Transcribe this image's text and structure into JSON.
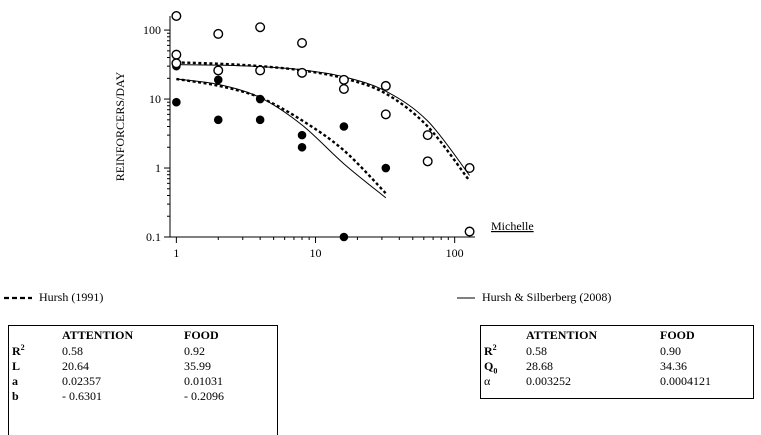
{
  "chart_data": {
    "type": "scatter",
    "xscale": "log",
    "yscale": "log",
    "xlim": [
      0.9,
      140
    ],
    "ylim": [
      0.1,
      160
    ],
    "ylabel": "REINFORCERS/DAY",
    "xticks": [
      1,
      10,
      100
    ],
    "xtick_labels": [
      "1",
      "10",
      "100"
    ],
    "yticks": [
      0.1,
      1,
      10,
      100
    ],
    "ytick_labels": [
      "0.1",
      "1",
      "10",
      "100"
    ],
    "annotation": "Michelle",
    "series": [
      {
        "name": "ATTENTION",
        "marker": "filled-circle",
        "points": [
          [
            1,
            30
          ],
          [
            1,
            9
          ],
          [
            2,
            19
          ],
          [
            2,
            5
          ],
          [
            4,
            10
          ],
          [
            4,
            5
          ],
          [
            8,
            3
          ],
          [
            8,
            2
          ],
          [
            16,
            4
          ],
          [
            16,
            0.1
          ],
          [
            32,
            1
          ]
        ]
      },
      {
        "name": "FOOD",
        "marker": "open-circle",
        "points": [
          [
            1,
            160
          ],
          [
            1,
            44
          ],
          [
            1,
            33
          ],
          [
            2,
            88
          ],
          [
            2,
            26
          ],
          [
            4,
            110
          ],
          [
            4,
            26
          ],
          [
            8,
            65
          ],
          [
            8,
            24
          ],
          [
            16,
            19
          ],
          [
            16,
            14
          ],
          [
            32,
            15.5
          ],
          [
            32,
            6
          ],
          [
            64,
            3
          ],
          [
            64,
            1.25
          ],
          [
            128,
            1
          ],
          [
            128,
            0.12
          ]
        ]
      }
    ],
    "fits": [
      {
        "model": "Hursh (1991)",
        "style": "dotted",
        "target": "ATTENTION",
        "points": [
          [
            1,
            19.5
          ],
          [
            2,
            15.6
          ],
          [
            4,
            10.5
          ],
          [
            8,
            4.9
          ],
          [
            16,
            1.8
          ],
          [
            32,
            0.43
          ]
        ]
      },
      {
        "model": "Hursh (1991)",
        "style": "dotted",
        "target": "FOOD",
        "points": [
          [
            1,
            34
          ],
          [
            2,
            32.5
          ],
          [
            4,
            30
          ],
          [
            8,
            26
          ],
          [
            16,
            20
          ],
          [
            32,
            12
          ],
          [
            64,
            4
          ],
          [
            128,
            0.65
          ]
        ]
      },
      {
        "model": "Hursh & Silberberg (2008)",
        "style": "solid",
        "target": "ATTENTION",
        "points": [
          [
            1,
            19.5
          ],
          [
            2,
            16.3
          ],
          [
            4,
            10.5
          ],
          [
            8,
            4.2
          ],
          [
            16,
            1.15
          ],
          [
            32,
            0.37
          ]
        ]
      },
      {
        "model": "Hursh & Silberberg (2008)",
        "style": "solid",
        "target": "FOOD",
        "points": [
          [
            1,
            31.5
          ],
          [
            2,
            31
          ],
          [
            4,
            29.5
          ],
          [
            8,
            26.5
          ],
          [
            16,
            21
          ],
          [
            32,
            13
          ],
          [
            64,
            4.8
          ],
          [
            128,
            0.78
          ]
        ]
      }
    ]
  },
  "legend": {
    "left": "Hursh (1991)",
    "right": "Hursh & Silberberg (2008)"
  },
  "table_left": {
    "headers": [
      "",
      "ATTENTION",
      "FOOD"
    ],
    "rows": [
      {
        "label": "R",
        "sup": "2",
        "attention": "0.58",
        "food": "0.92"
      },
      {
        "label": "L",
        "sup": "",
        "attention": "20.64",
        "food": "35.99"
      },
      {
        "label": "a",
        "sup": "",
        "attention": "0.02357",
        "food": "0.01031"
      },
      {
        "label": "b",
        "sup": "",
        "attention": "- 0.6301",
        "food": "- 0.2096"
      }
    ]
  },
  "table_right": {
    "headers": [
      "",
      "ATTENTION",
      "FOOD"
    ],
    "rows": [
      {
        "label": "R",
        "sup": "2",
        "sub": "",
        "attention": "0.58",
        "food": "0.90"
      },
      {
        "label": "Q",
        "sup": "",
        "sub": "0",
        "attention": "28.68",
        "food": "34.36"
      },
      {
        "label": "α",
        "sup": "",
        "sub": "",
        "attention": "0.003252",
        "food": "0.0004121"
      }
    ]
  }
}
